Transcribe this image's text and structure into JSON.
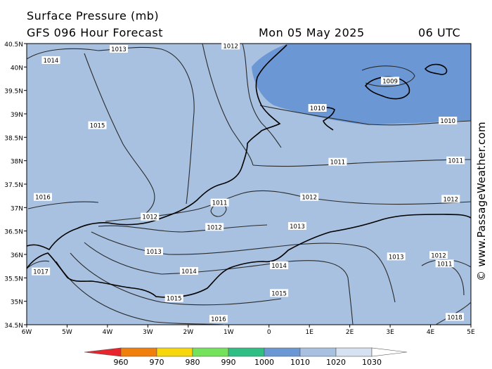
{
  "header": {
    "title": "Surface Pressure (mb)",
    "subtitle": "GFS 096 Hour Forecast",
    "date": "Mon 05 May 2025",
    "time": "06 UTC"
  },
  "brand": "© www.PassageWeather.com",
  "map": {
    "lat_labels": [
      "40.5N",
      "40N",
      "39.5N",
      "39N",
      "38.5N",
      "38N",
      "37.5N",
      "37N",
      "36.5N",
      "36N",
      "35.5N",
      "35N",
      "34.5N"
    ],
    "lon_labels": [
      "6W",
      "5W",
      "4W",
      "3W",
      "2W",
      "1W",
      "0",
      "1E",
      "2E",
      "3E",
      "4E",
      "5E"
    ],
    "colors": {
      "water": "#a8c1e0",
      "low_pressure": "#6b98d4",
      "land_line": "#000000",
      "isobar": "#2a2a2a"
    },
    "isobar_labels": [
      {
        "text": "1013",
        "lon": -3.72,
        "lat": 40.38
      },
      {
        "text": "1014",
        "lon": -5.4,
        "lat": 40.14
      },
      {
        "text": "1012",
        "lon": -0.95,
        "lat": 40.45
      },
      {
        "text": "1009",
        "lon": 3.0,
        "lat": 39.7
      },
      {
        "text": "1010",
        "lon": 1.2,
        "lat": 39.12
      },
      {
        "text": "1010",
        "lon": 4.43,
        "lat": 38.85
      },
      {
        "text": "1015",
        "lon": -4.25,
        "lat": 38.75
      },
      {
        "text": "1011",
        "lon": 1.7,
        "lat": 37.97
      },
      {
        "text": "1011",
        "lon": 4.62,
        "lat": 38.0
      },
      {
        "text": "1016",
        "lon": -5.6,
        "lat": 37.22
      },
      {
        "text": "1012",
        "lon": 1.0,
        "lat": 37.22
      },
      {
        "text": "1012",
        "lon": 4.5,
        "lat": 37.18
      },
      {
        "text": "1011",
        "lon": -1.22,
        "lat": 37.1
      },
      {
        "text": "1012",
        "lon": -2.95,
        "lat": 36.8
      },
      {
        "text": "1012",
        "lon": -1.35,
        "lat": 36.58
      },
      {
        "text": "1013",
        "lon": 0.7,
        "lat": 36.6
      },
      {
        "text": "1013",
        "lon": -2.85,
        "lat": 36.06
      },
      {
        "text": "1013",
        "lon": 3.15,
        "lat": 35.95
      },
      {
        "text": "1012",
        "lon": 4.2,
        "lat": 35.98
      },
      {
        "text": "1011",
        "lon": 4.35,
        "lat": 35.8
      },
      {
        "text": "1017",
        "lon": -5.65,
        "lat": 35.63
      },
      {
        "text": "1014",
        "lon": -1.98,
        "lat": 35.64
      },
      {
        "text": "1014",
        "lon": 0.25,
        "lat": 35.76
      },
      {
        "text": "1015",
        "lon": 0.25,
        "lat": 35.17
      },
      {
        "text": "1015",
        "lon": -2.35,
        "lat": 35.06
      },
      {
        "text": "1016",
        "lon": -1.25,
        "lat": 34.62
      },
      {
        "text": "1018",
        "lon": 4.6,
        "lat": 34.66
      }
    ]
  },
  "legend": {
    "ticks": [
      "960",
      "970",
      "980",
      "990",
      "1000",
      "1010",
      "1020",
      "1030"
    ],
    "colors": [
      "#e8242d",
      "#f07f0c",
      "#f7d70c",
      "#74e25a",
      "#2fbf84",
      "#6b98d4",
      "#a8c1e0",
      "#d6e2f2",
      "#ffffff"
    ]
  }
}
